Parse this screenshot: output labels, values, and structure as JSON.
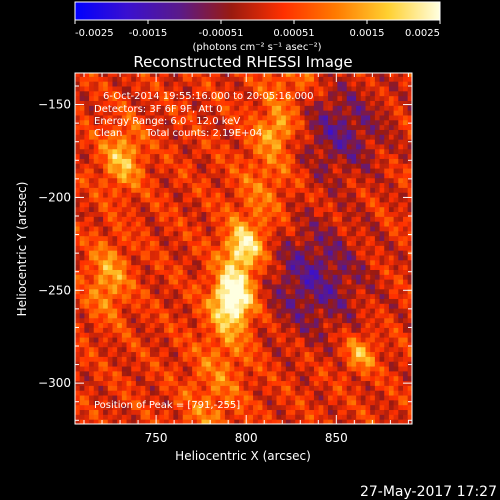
{
  "chart_data": {
    "type": "heatmap",
    "title": "Reconstructed RHESSI Image",
    "xlabel": "Heliocentric X (arcsec)",
    "ylabel": "Heliocentric Y (arcsec)",
    "xlim": [
      705,
      892
    ],
    "ylim": [
      -322,
      -133
    ],
    "x_ticks": [
      750,
      800,
      850
    ],
    "y_ticks": [
      -150,
      -200,
      -250,
      -300
    ],
    "colorbar": {
      "min": -0.0025,
      "max": 0.0025,
      "ticks": [
        "-0.0025",
        "-0.0015",
        "-0.00051",
        "0.00051",
        "0.0015",
        "0.0025"
      ],
      "unit_label": "(photons cm⁻² s⁻¹ asec⁻²)",
      "colormap": [
        "#0000ff",
        "#3a10d0",
        "#5a1a8a",
        "#9a1a10",
        "#ff3000",
        "#ff7a00",
        "#ffd030",
        "#ffffe0"
      ]
    },
    "annotations": {
      "time": "6-Oct-2014 19:55:16.000 to 20:05:16.000",
      "detectors": "Detectors: 3F 6F 9F, Att 0",
      "energy": "Energy Range: 6.0 - 12.0 keV",
      "clean_label": "Clean",
      "total_counts": "Total counts: 2.19E+04",
      "peak": "Position of Peak = [791,-255]"
    },
    "peak": [
      791,
      -255
    ],
    "sources": [
      {
        "x": 791,
        "y": -255,
        "sigma_x": 7,
        "sigma_y": 10,
        "amplitude": 0.0025
      },
      {
        "x": 797,
        "y": -228,
        "sigma_x": 7,
        "sigma_y": 8,
        "amplitude": 0.0016
      },
      {
        "x": 730,
        "y": -180,
        "sigma_x": 8,
        "sigma_y": 12,
        "amplitude": 0.0014
      },
      {
        "x": 722,
        "y": -245,
        "sigma_x": 8,
        "sigma_y": 14,
        "amplitude": 0.0012
      },
      {
        "x": 862,
        "y": -285,
        "sigma_x": 6,
        "sigma_y": 7,
        "amplitude": 0.0013
      },
      {
        "x": 815,
        "y": -165,
        "sigma_x": 6,
        "sigma_y": 6,
        "amplitude": 0.0009
      }
    ]
  },
  "footer": {
    "date": "27-May-2017 17:27"
  },
  "colors": {
    "background": "#000000",
    "text": "#ffffff"
  }
}
